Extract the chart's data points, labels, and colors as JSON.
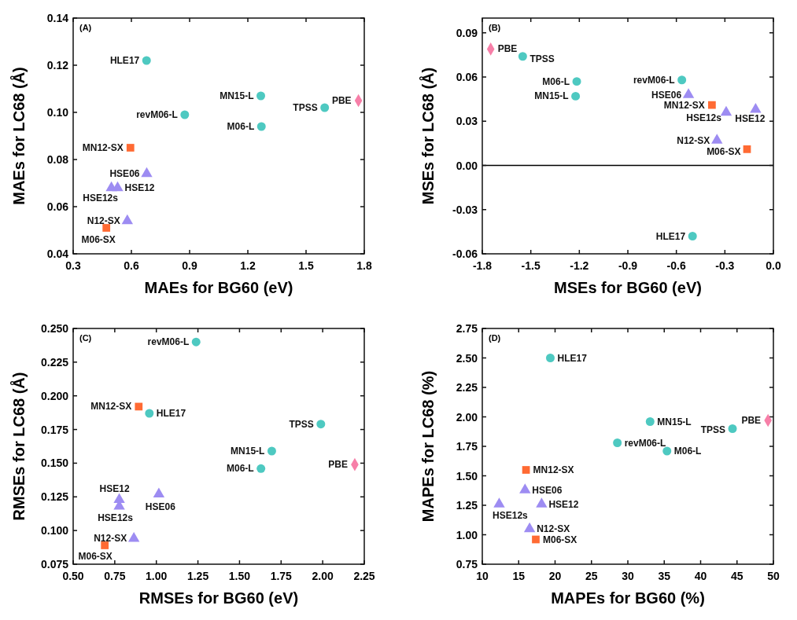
{
  "chart_data": [
    {
      "type": "scatter",
      "title": "(A)",
      "xlabel": "MAEs for BG60 (eV)",
      "ylabel": "MAEs for LC68 (Å)",
      "xlim": [
        0.3,
        1.8
      ],
      "ylim": [
        0.04,
        0.14
      ],
      "xticks": [
        0.3,
        0.6,
        0.9,
        1.2,
        1.5,
        1.8
      ],
      "yticks": [
        {
          "value": 0.04,
          "label": "0.04"
        },
        {
          "value": 0.06,
          "label": "0.06"
        },
        {
          "value": 0.08,
          "label": "0.08"
        },
        {
          "value": 0.1,
          "label": "0.10"
        },
        {
          "value": 0.12,
          "label": "0.12"
        },
        {
          "value": 0.14,
          "label": "0.14"
        }
      ],
      "series": [
        {
          "name": "HLE17",
          "color": "#4ec9c1",
          "marker": "circle",
          "x": [
            0.678
          ],
          "values": [
            0.122
          ]
        },
        {
          "name": "MN15-L",
          "color": "#4ec9c1",
          "marker": "circle",
          "x": [
            1.267
          ],
          "values": [
            0.107
          ]
        },
        {
          "name": "PBE",
          "color": "#f77fa8",
          "marker": "diamond",
          "x": [
            1.77
          ],
          "values": [
            0.105
          ]
        },
        {
          "name": "TPSS",
          "color": "#4ec9c1",
          "marker": "circle",
          "x": [
            1.596
          ],
          "values": [
            0.102
          ]
        },
        {
          "name": "revM06-L",
          "color": "#4ec9c1",
          "marker": "circle",
          "x": [
            0.875
          ],
          "values": [
            0.099
          ]
        },
        {
          "name": "M06-L",
          "color": "#4ec9c1",
          "marker": "circle",
          "x": [
            1.27
          ],
          "values": [
            0.094
          ]
        },
        {
          "name": "MN12-SX",
          "color": "#ff6a33",
          "marker": "square",
          "x": [
            0.595
          ],
          "values": [
            0.085
          ]
        },
        {
          "name": "HSE06",
          "color": "#9d8cf2",
          "marker": "triangle",
          "x": [
            0.679
          ],
          "values": [
            0.074
          ]
        },
        {
          "name": "HSE12s",
          "color": "#9d8cf2",
          "marker": "triangle",
          "x": [
            0.497
          ],
          "values": [
            0.068
          ]
        },
        {
          "name": "HSE12",
          "color": "#9d8cf2",
          "marker": "triangle",
          "x": [
            0.529
          ],
          "values": [
            0.068
          ]
        },
        {
          "name": "N12-SX",
          "color": "#9d8cf2",
          "marker": "triangle",
          "x": [
            0.579
          ],
          "values": [
            0.054
          ]
        },
        {
          "name": "M06-SX",
          "color": "#ff6a33",
          "marker": "square",
          "x": [
            0.471
          ],
          "values": [
            0.051
          ]
        }
      ]
    },
    {
      "type": "scatter",
      "title": "(B)",
      "xlabel": "MSEs for BG60 (eV)",
      "ylabel": "MSEs for LC68 (Å)",
      "xlim": [
        -1.8,
        0
      ],
      "ylim": [
        -0.06,
        0.1
      ],
      "xticks": [
        -1.8,
        -1.5,
        -1.2,
        -0.9,
        -0.6,
        -0.3,
        {
          "value": 0,
          "label": "0.0"
        }
      ],
      "yticks": [
        -0.06,
        -0.03,
        {
          "value": 0,
          "label": "0.00"
        },
        0.03,
        0.06,
        0.09
      ],
      "ref_lines": [
        {
          "axis": "y",
          "value": 0,
          "color": "#000000"
        }
      ],
      "series": [
        {
          "name": "HLE17",
          "color": "#4ec9c1",
          "marker": "circle",
          "x": [
            -0.5
          ],
          "values": [
            -0.048
          ]
        },
        {
          "name": "MN15-L",
          "color": "#4ec9c1",
          "marker": "circle",
          "x": [
            -1.223
          ],
          "values": [
            0.047
          ]
        },
        {
          "name": "PBE",
          "color": "#f77fa8",
          "marker": "diamond",
          "x": [
            -1.748
          ],
          "values": [
            0.079
          ]
        },
        {
          "name": "TPSS",
          "color": "#4ec9c1",
          "marker": "circle",
          "x": [
            -1.55
          ],
          "values": [
            0.074
          ]
        },
        {
          "name": "revM06-L",
          "color": "#4ec9c1",
          "marker": "circle",
          "x": [
            -0.566
          ],
          "values": [
            0.058
          ]
        },
        {
          "name": "M06-L",
          "color": "#4ec9c1",
          "marker": "circle",
          "x": [
            -1.216
          ],
          "values": [
            0.057
          ]
        },
        {
          "name": "MN12-SX",
          "color": "#ff6a33",
          "marker": "square",
          "x": [
            -0.38
          ],
          "values": [
            0.041
          ]
        },
        {
          "name": "HSE06",
          "color": "#9d8cf2",
          "marker": "triangle",
          "x": [
            -0.525
          ],
          "values": [
            0.048
          ]
        },
        {
          "name": "HSE12s",
          "color": "#9d8cf2",
          "marker": "triangle",
          "x": [
            -0.292
          ],
          "values": [
            0.036
          ]
        },
        {
          "name": "HSE12",
          "color": "#9d8cf2",
          "marker": "triangle",
          "x": [
            -0.11
          ],
          "values": [
            0.038
          ]
        },
        {
          "name": "N12-SX",
          "color": "#9d8cf2",
          "marker": "triangle",
          "x": [
            -0.349
          ],
          "values": [
            0.017
          ]
        },
        {
          "name": "M06-SX",
          "color": "#ff6a33",
          "marker": "square",
          "x": [
            -0.163
          ],
          "values": [
            0.011
          ]
        }
      ]
    },
    {
      "type": "scatter",
      "title": "(C)",
      "xlabel": "RMSEs for BG60 (eV)",
      "ylabel": "RMSEs for LC68 (Å)",
      "xlim": [
        0.5,
        2.25
      ],
      "ylim": [
        0.075,
        0.25
      ],
      "xticks": [
        {
          "value": 0.5,
          "label": "0.50"
        },
        0.75,
        {
          "value": 1,
          "label": "1.00"
        },
        1.25,
        {
          "value": 1.5,
          "label": "1.50"
        },
        1.75,
        {
          "value": 2,
          "label": "2.00"
        },
        2.25
      ],
      "yticks": [
        0.075,
        {
          "value": 0.1,
          "label": "0.100"
        },
        0.125,
        {
          "value": 0.15,
          "label": "0.150"
        },
        0.175,
        {
          "value": 0.2,
          "label": "0.200"
        },
        0.225,
        {
          "value": 0.25,
          "label": "0.250"
        }
      ],
      "series": [
        {
          "name": "HLE17",
          "color": "#4ec9c1",
          "marker": "circle",
          "x": [
            0.958
          ],
          "values": [
            0.187
          ]
        },
        {
          "name": "MN15-L",
          "color": "#4ec9c1",
          "marker": "circle",
          "x": [
            1.694
          ],
          "values": [
            0.159
          ]
        },
        {
          "name": "PBE",
          "color": "#f77fa8",
          "marker": "diamond",
          "x": [
            2.193
          ],
          "values": [
            0.149
          ]
        },
        {
          "name": "TPSS",
          "color": "#4ec9c1",
          "marker": "circle",
          "x": [
            1.989
          ],
          "values": [
            0.179
          ]
        },
        {
          "name": "revM06-L",
          "color": "#4ec9c1",
          "marker": "circle",
          "x": [
            1.239
          ],
          "values": [
            0.24
          ]
        },
        {
          "name": "M06-L",
          "color": "#4ec9c1",
          "marker": "circle",
          "x": [
            1.629
          ],
          "values": [
            0.146
          ]
        },
        {
          "name": "MN12-SX",
          "color": "#ff6a33",
          "marker": "square",
          "x": [
            0.894
          ],
          "values": [
            0.192
          ]
        },
        {
          "name": "HSE06",
          "color": "#9d8cf2",
          "marker": "triangle",
          "x": [
            1.015
          ],
          "values": [
            0.127
          ]
        },
        {
          "name": "HSE12s",
          "color": "#9d8cf2",
          "marker": "triangle",
          "x": [
            0.777
          ],
          "values": [
            0.118
          ]
        },
        {
          "name": "HSE12",
          "color": "#9d8cf2",
          "marker": "triangle",
          "x": [
            0.777
          ],
          "values": [
            0.123
          ]
        },
        {
          "name": "N12-SX",
          "color": "#9d8cf2",
          "marker": "triangle",
          "x": [
            0.865
          ],
          "values": [
            0.094
          ]
        },
        {
          "name": "M06-SX",
          "color": "#ff6a33",
          "marker": "square",
          "x": [
            0.69
          ],
          "values": [
            0.089
          ]
        }
      ]
    },
    {
      "type": "scatter",
      "title": "(D)",
      "xlabel": "MAPEs for BG60 (%)",
      "ylabel": "MAPEs for LC68 (%)",
      "xlim": [
        10,
        50
      ],
      "ylim": [
        0.75,
        2.75
      ],
      "xticks": [
        10,
        15,
        20,
        25,
        30,
        35,
        40,
        45,
        50
      ],
      "yticks": [
        0.75,
        {
          "value": 1,
          "label": "1.00"
        },
        1.25,
        {
          "value": 1.5,
          "label": "1.50"
        },
        1.75,
        {
          "value": 2,
          "label": "2.00"
        },
        2.25,
        {
          "value": 2.5,
          "label": "2.50"
        },
        2.75
      ],
      "series": [
        {
          "name": "HLE17",
          "color": "#4ec9c1",
          "marker": "circle",
          "x": [
            19.35
          ],
          "values": [
            2.5
          ]
        },
        {
          "name": "MN15-L",
          "color": "#4ec9c1",
          "marker": "circle",
          "x": [
            33.06
          ],
          "values": [
            1.96
          ]
        },
        {
          "name": "PBE",
          "color": "#f77fa8",
          "marker": "diamond",
          "x": [
            49.26
          ],
          "values": [
            1.97
          ]
        },
        {
          "name": "TPSS",
          "color": "#4ec9c1",
          "marker": "circle",
          "x": [
            44.38
          ],
          "values": [
            1.9
          ]
        },
        {
          "name": "revM06-L",
          "color": "#4ec9c1",
          "marker": "circle",
          "x": [
            28.56
          ],
          "values": [
            1.78
          ]
        },
        {
          "name": "M06-L",
          "color": "#4ec9c1",
          "marker": "circle",
          "x": [
            35.38
          ],
          "values": [
            1.71
          ]
        },
        {
          "name": "MN12-SX",
          "color": "#ff6a33",
          "marker": "square",
          "x": [
            16.01
          ],
          "values": [
            1.55
          ]
        },
        {
          "name": "HSE06",
          "color": "#9d8cf2",
          "marker": "triangle",
          "x": [
            15.87
          ],
          "values": [
            1.38
          ]
        },
        {
          "name": "HSE12s",
          "color": "#9d8cf2",
          "marker": "triangle",
          "x": [
            12.32
          ],
          "values": [
            1.26
          ]
        },
        {
          "name": "HSE12",
          "color": "#9d8cf2",
          "marker": "triangle",
          "x": [
            18.15
          ],
          "values": [
            1.26
          ]
        },
        {
          "name": "N12-SX",
          "color": "#9d8cf2",
          "marker": "triangle",
          "x": [
            16.5
          ],
          "values": [
            1.05
          ]
        },
        {
          "name": "M06-SX",
          "color": "#ff6a33",
          "marker": "square",
          "x": [
            17.35
          ],
          "values": [
            0.96
          ]
        }
      ]
    }
  ]
}
